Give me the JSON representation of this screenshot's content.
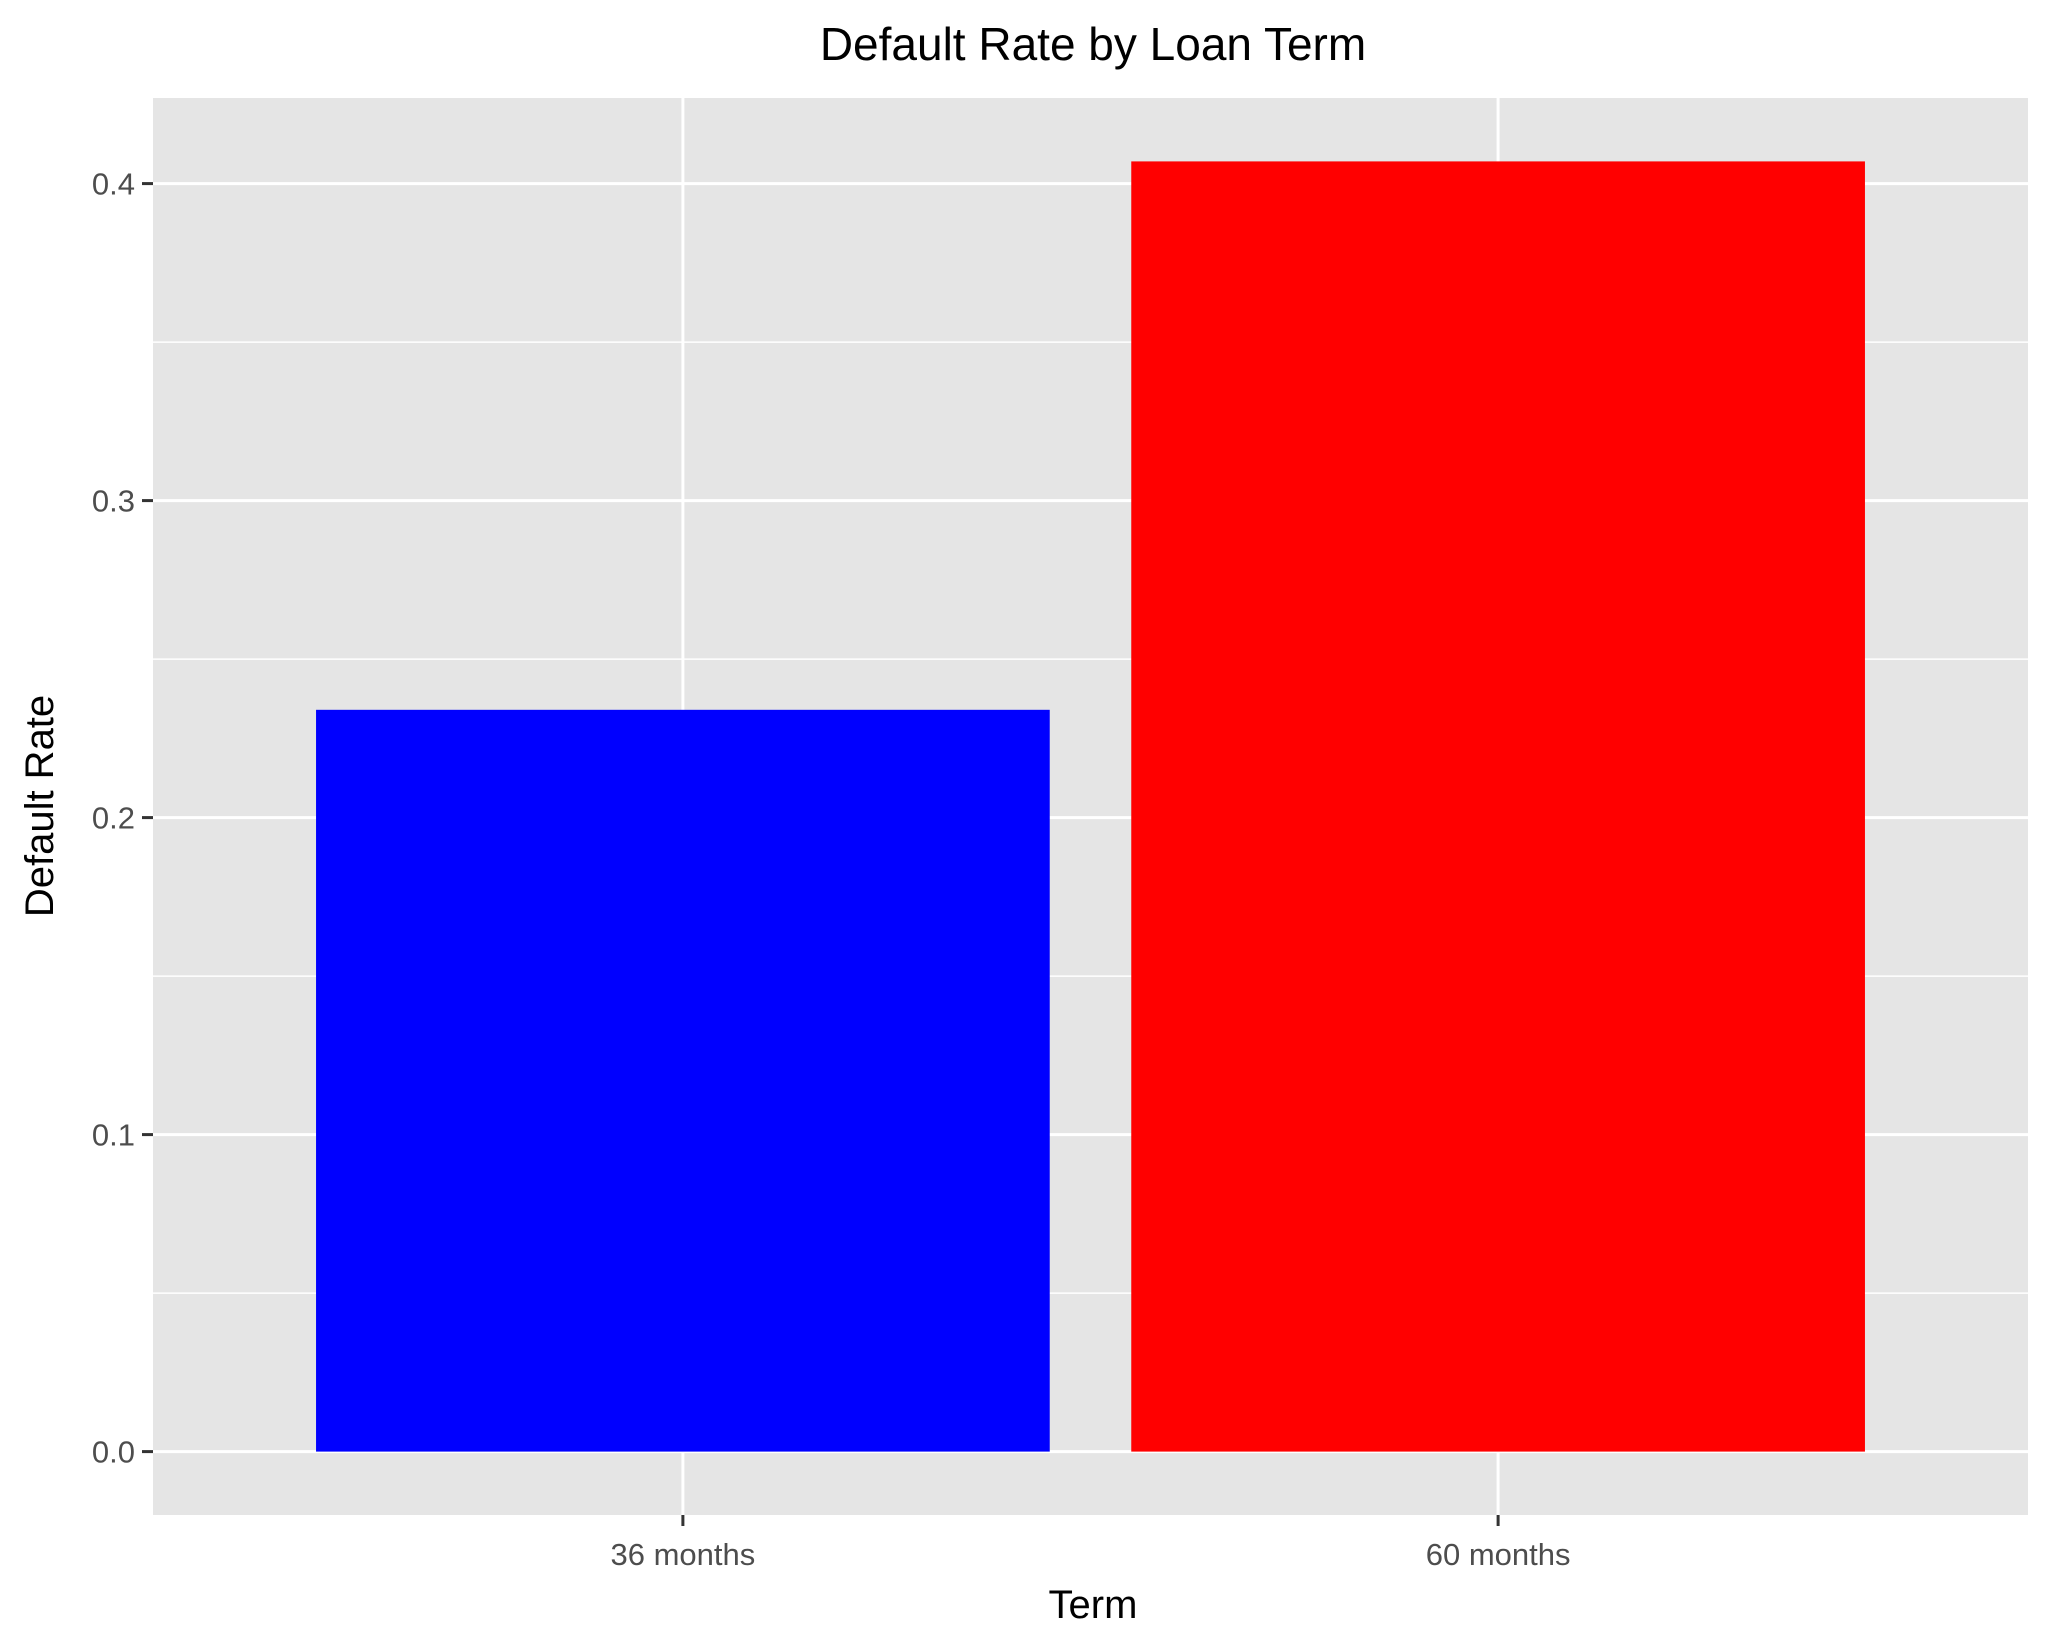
{
  "chart_data": {
    "type": "bar",
    "title": "Default Rate by Loan Term",
    "xlabel": "Term",
    "ylabel": "Default Rate",
    "categories": [
      "36 months",
      "60 months"
    ],
    "values": [
      0.234,
      0.407
    ],
    "bar_colors": [
      "#0000ff",
      "#ff0000"
    ],
    "ylim": [
      -0.02,
      0.427
    ],
    "yticks": [
      0.0,
      0.1,
      0.2,
      0.3,
      0.4
    ],
    "ytick_labels": [
      "0.0",
      "0.1",
      "0.2",
      "0.3",
      "0.4"
    ],
    "grid": true,
    "legend": "none",
    "panel_background": "#e5e5e5",
    "grid_color": "#ffffff"
  }
}
